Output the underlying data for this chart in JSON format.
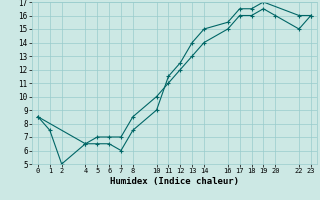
{
  "xlabel": "Humidex (Indice chaleur)",
  "bg_color": "#cce8e4",
  "grid_color": "#99cccc",
  "line_color": "#006666",
  "line1_x": [
    0,
    1,
    2,
    4,
    5,
    6,
    7,
    8,
    10,
    11,
    12,
    13,
    14,
    16,
    17,
    18,
    19,
    22,
    23
  ],
  "line1_y": [
    8.5,
    7.5,
    5.0,
    6.5,
    6.5,
    6.5,
    6.0,
    7.5,
    9.0,
    11.5,
    12.5,
    14.0,
    15.0,
    15.5,
    16.5,
    16.5,
    17.0,
    16.0,
    16.0
  ],
  "line2_x": [
    0,
    4,
    5,
    6,
    7,
    8,
    10,
    11,
    12,
    13,
    14,
    16,
    17,
    18,
    19,
    20,
    22,
    23
  ],
  "line2_y": [
    8.5,
    6.5,
    7.0,
    7.0,
    7.0,
    8.5,
    10.0,
    11.0,
    12.0,
    13.0,
    14.0,
    15.0,
    16.0,
    16.0,
    16.5,
    16.0,
    15.0,
    16.0
  ],
  "ylim": [
    5,
    17
  ],
  "xlim": [
    -0.5,
    23.5
  ],
  "xticks": [
    0,
    1,
    2,
    4,
    5,
    6,
    7,
    8,
    10,
    11,
    12,
    13,
    14,
    16,
    17,
    18,
    19,
    20,
    22,
    23
  ],
  "yticks": [
    5,
    6,
    7,
    8,
    9,
    10,
    11,
    12,
    13,
    14,
    15,
    16,
    17
  ]
}
